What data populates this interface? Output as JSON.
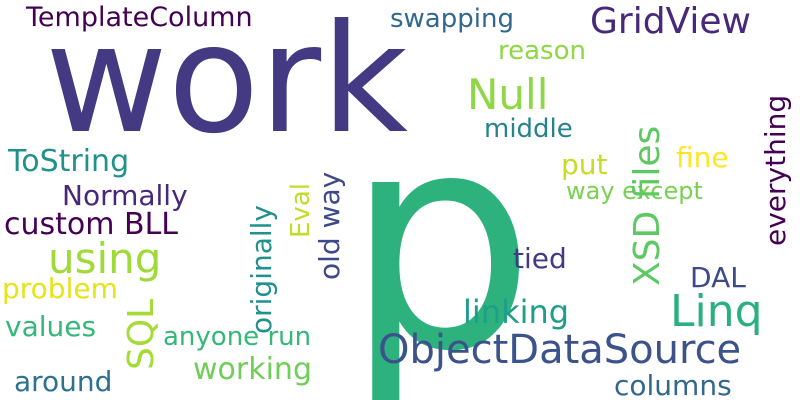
{
  "word_cloud": {
    "words": [
      {
        "text": "work",
        "color": "#443983"
      },
      {
        "text": "p",
        "color": "#2db27d"
      },
      {
        "text": "TemplateColumn",
        "color": "#440154"
      },
      {
        "text": "swapping",
        "color": "#31688e"
      },
      {
        "text": "GridView",
        "color": "#482878"
      },
      {
        "text": "reason",
        "color": "#8fd744"
      },
      {
        "text": "Null",
        "color": "#8fd744"
      },
      {
        "text": "middle",
        "color": "#26828e"
      },
      {
        "text": "ToString",
        "color": "#21918c"
      },
      {
        "text": "put",
        "color": "#c2df23"
      },
      {
        "text": "fine",
        "color": "#fde725"
      },
      {
        "text": "Normally",
        "color": "#482878"
      },
      {
        "text": "way except",
        "color": "#7ad151"
      },
      {
        "text": "custom BLL",
        "color": "#440154"
      },
      {
        "text": "using",
        "color": "#a0da39"
      },
      {
        "text": "tied",
        "color": "#443983"
      },
      {
        "text": "DAL",
        "color": "#3e4989"
      },
      {
        "text": "problem",
        "color": "#e5e419"
      },
      {
        "text": "linking",
        "color": "#1f9e89"
      },
      {
        "text": "Linq",
        "color": "#2ab07f"
      },
      {
        "text": "values",
        "color": "#35b779"
      },
      {
        "text": "anyone run",
        "color": "#35b779"
      },
      {
        "text": "ObjectDataSource",
        "color": "#3b528b"
      },
      {
        "text": "working",
        "color": "#6ece58"
      },
      {
        "text": "around",
        "color": "#2c728e"
      },
      {
        "text": "columns",
        "color": "#31688e"
      }
    ],
    "vertical_words": [
      {
        "text": "XSD files",
        "color": "#5ec962"
      },
      {
        "text": "everything",
        "color": "#440154"
      },
      {
        "text": "originally",
        "color": "#21918c"
      },
      {
        "text": "Eval",
        "color": "#bddf26"
      },
      {
        "text": "old way",
        "color": "#3e4989"
      },
      {
        "text": "SQL",
        "color": "#a5db36"
      }
    ]
  }
}
